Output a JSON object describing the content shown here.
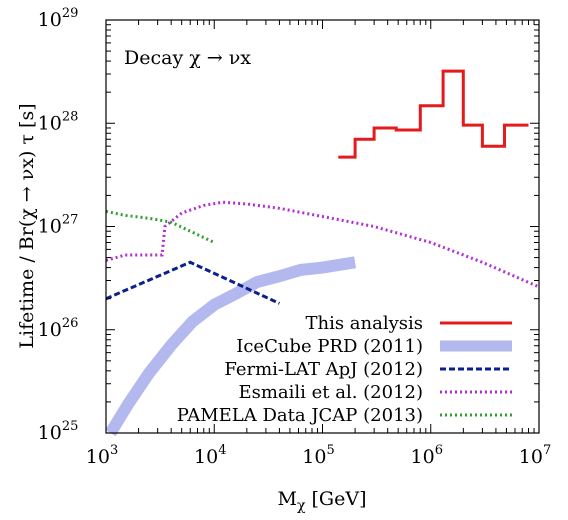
{
  "chart_data": {
    "type": "line",
    "annotation": "Decay χ → νx",
    "xlabel": {
      "main": "M",
      "sub": "χ",
      "rest": " [GeV]"
    },
    "ylabel": "Lifetime / Br(χ → νx) τ [s]",
    "xscale": "log",
    "yscale": "log",
    "xlim": [
      1000,
      10000000
    ],
    "ylim": [
      1e+25,
      1e+29
    ],
    "x_ticks": [
      {
        "value": 1000,
        "base": "10",
        "exp": "3"
      },
      {
        "value": 10000,
        "base": "10",
        "exp": "4"
      },
      {
        "value": 100000,
        "base": "10",
        "exp": "5"
      },
      {
        "value": 1000000,
        "base": "10",
        "exp": "6"
      },
      {
        "value": 10000000,
        "base": "10",
        "exp": "7"
      }
    ],
    "y_ticks": [
      {
        "value": 1e+25,
        "base": "10",
        "exp": "25"
      },
      {
        "value": 1e+26,
        "base": "10",
        "exp": "26"
      },
      {
        "value": 1e+27,
        "base": "10",
        "exp": "27"
      },
      {
        "value": 1e+28,
        "base": "10",
        "exp": "28"
      },
      {
        "value": 1e+29,
        "base": "10",
        "exp": "29"
      }
    ],
    "grid": false,
    "legend_position": "bottom-right",
    "series": [
      {
        "name": "This analysis",
        "color": "#e41a1c",
        "style": "solid",
        "x": [
          140000,
          200000,
          200000,
          300000,
          300000,
          480000,
          480000,
          800000,
          800000,
          1300000,
          1300000,
          2000000,
          2000000,
          3000000,
          3000000,
          4800000,
          4800000,
          8000000
        ],
        "y": [
          4.7e+27,
          4.7e+27,
          7e+27,
          7e+27,
          9e+27,
          9e+27,
          8.6e+27,
          8.6e+27,
          1.48e+28,
          1.48e+28,
          3.2e+28,
          3.2e+28,
          9.6e+27,
          9.6e+27,
          6e+27,
          6e+27,
          9.6e+27,
          9.6e+27
        ]
      },
      {
        "name": "IceCube PRD (2011)",
        "color": "#b3b8ef",
        "style": "band",
        "x": [
          1100,
          1600,
          2500,
          4000,
          6300,
          10000,
          16000,
          25000,
          40000,
          63000,
          100000,
          200000
        ],
        "y": [
          1e+25,
          1.9e+25,
          3.8e+25,
          7.1e+25,
          1.2e+26,
          1.75e+26,
          2.25e+26,
          2.9e+26,
          3.3e+26,
          3.8e+26,
          4e+26,
          4.5e+26
        ]
      },
      {
        "name": "Fermi-LAT ApJ (2012)",
        "color": "#0b1f8f",
        "style": "dashed",
        "x": [
          1000,
          6000,
          40000
        ],
        "y": [
          2e+26,
          4.5e+26,
          1.8e+26
        ]
      },
      {
        "name": "Esmaili et al. (2012)",
        "color": "#b12dd6",
        "style": "dotted",
        "x": [
          1000,
          1500,
          2500,
          3300,
          3500,
          5000,
          8000,
          12000,
          20000,
          40000,
          100000,
          300000,
          1000000,
          3000000,
          10000000
        ],
        "y": [
          4.7e+26,
          5.3e+26,
          5.3e+26,
          5.3e+26,
          1e+27,
          1.35e+27,
          1.6e+27,
          1.72e+27,
          1.65e+27,
          1.5e+27,
          1.25e+27,
          1e+27,
          7e+26,
          4.5e+26,
          2.6e+26
        ]
      },
      {
        "name": "PAMELA Data JCAP (2013)",
        "color": "#2fa02f",
        "style": "dotted",
        "x": [
          1000,
          1500,
          2500,
          4000,
          6000,
          8000,
          10000
        ],
        "y": [
          1.4e+27,
          1.28e+27,
          1.2e+27,
          1.1e+27,
          9e+26,
          7.8e+26,
          7e+26
        ]
      }
    ]
  }
}
